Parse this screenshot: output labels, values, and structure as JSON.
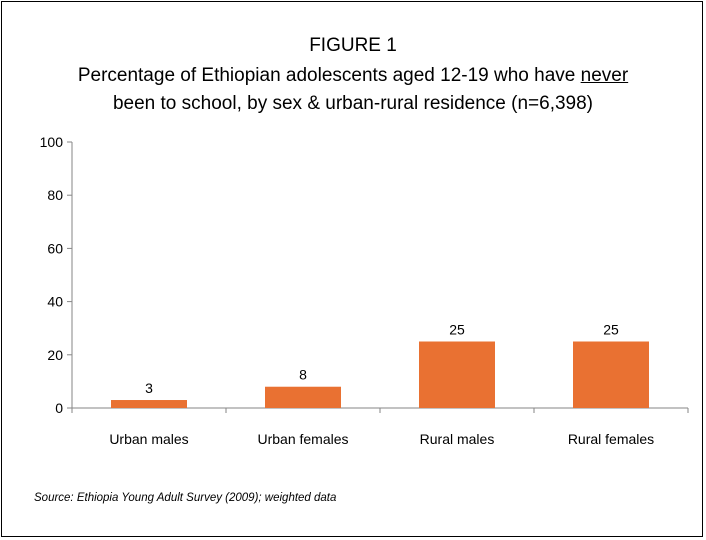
{
  "figure_label": "FIGURE 1",
  "title": {
    "line1": "Percentage of Ethiopian adolescents aged 12-19 who have ",
    "emph": "never",
    "line2": "been to school, by sex & urban-rural residence (n=6,398)"
  },
  "source": "Source:  Ethiopia Young Adult Survey (2009); weighted data",
  "chart_data": {
    "type": "bar",
    "categories": [
      "Urban males",
      "Urban females",
      "Rural males",
      "Rural females"
    ],
    "values": [
      3,
      8,
      25,
      25
    ],
    "data_labels": [
      "3",
      "8",
      "25",
      "25"
    ],
    "ylim": [
      0,
      100
    ],
    "yticks": [
      0,
      20,
      40,
      60,
      80,
      100
    ],
    "xlabel": "",
    "ylabel": "",
    "bar_color": "#E97132",
    "axis_color": "#868686",
    "grid": false,
    "legend": "none"
  }
}
